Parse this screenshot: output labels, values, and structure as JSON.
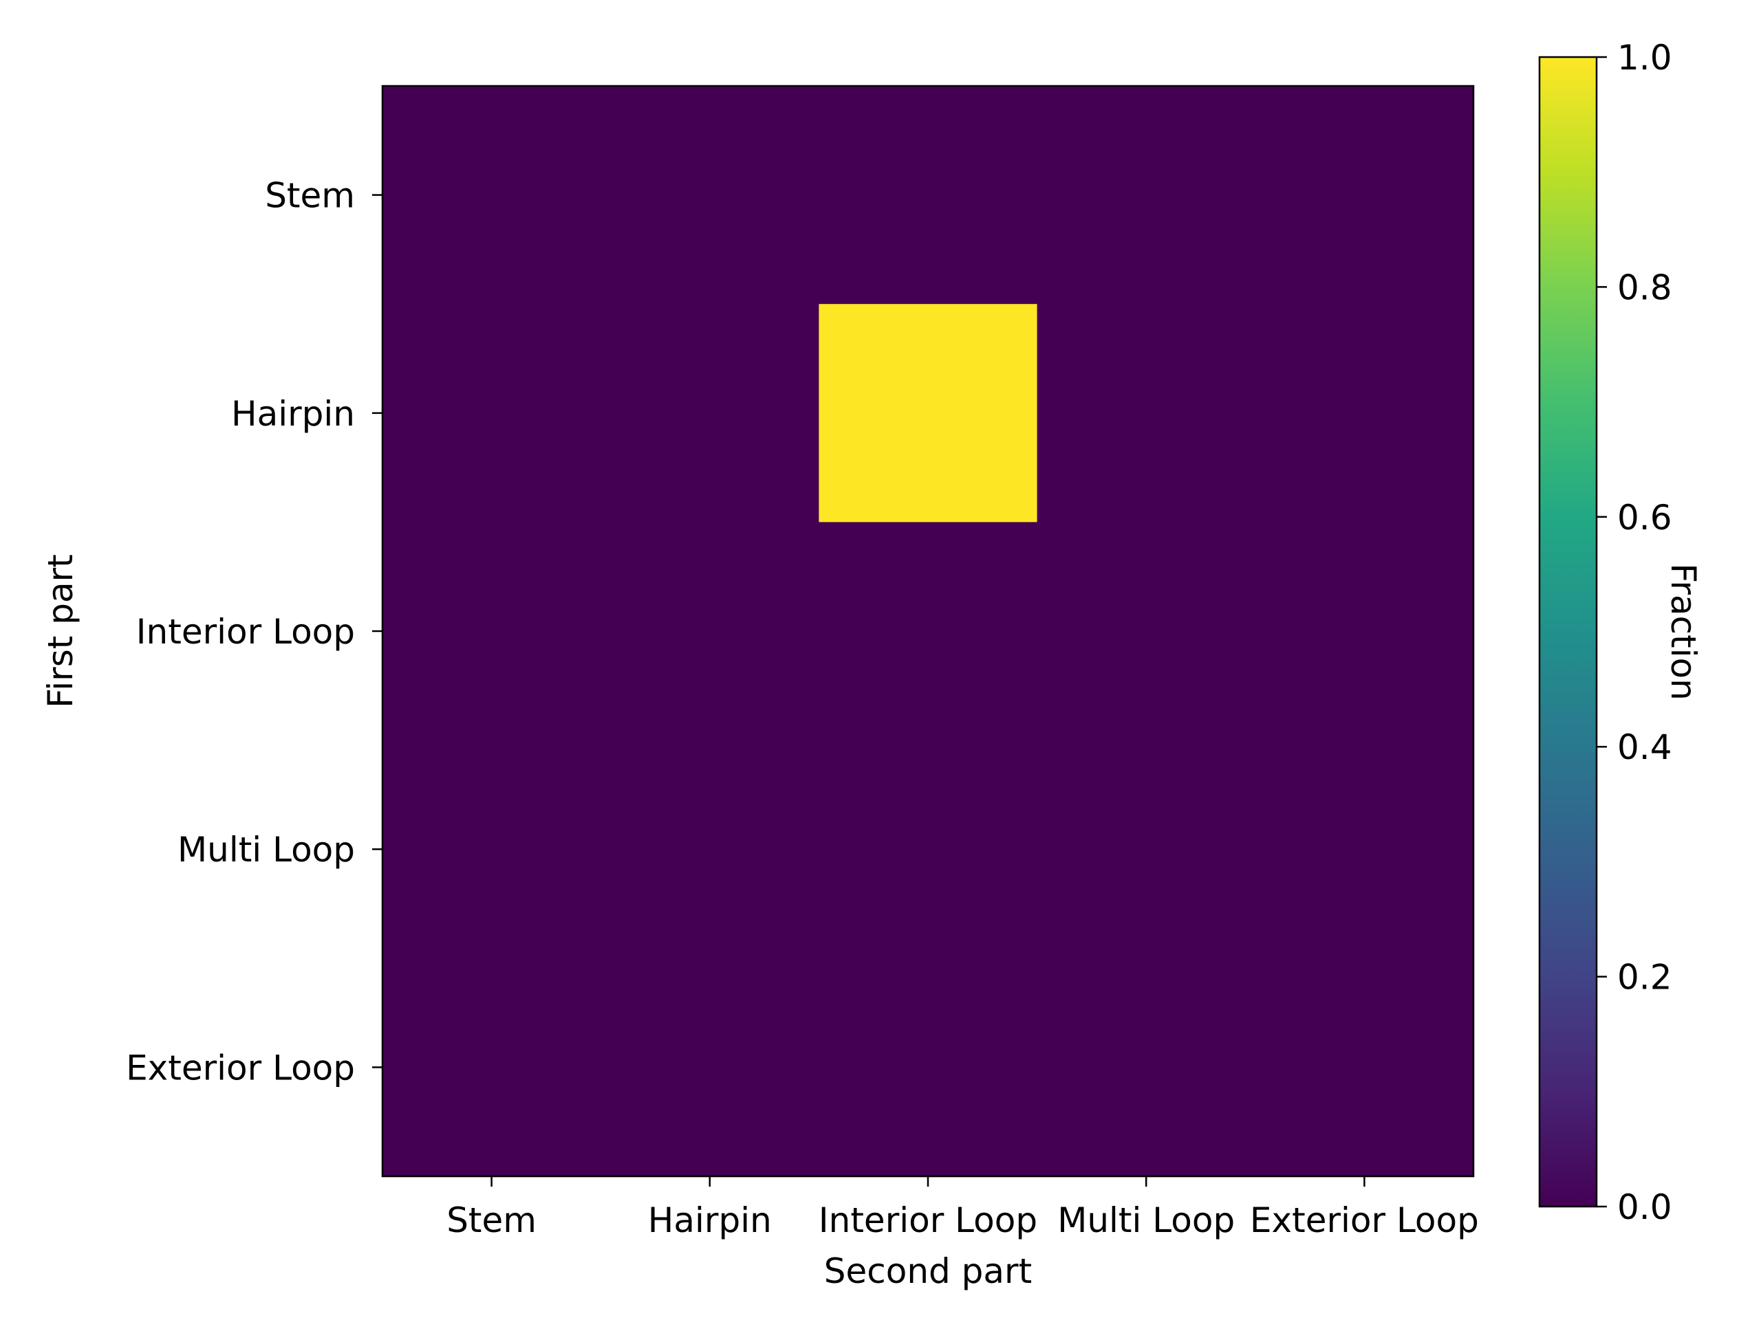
{
  "chart_data": {
    "type": "heatmap",
    "title": "",
    "xlabel": "Second part",
    "ylabel": "First part",
    "x_categories": [
      "Stem",
      "Hairpin",
      "Interior Loop",
      "Multi Loop",
      "Exterior Loop"
    ],
    "y_categories": [
      "Stem",
      "Hairpin",
      "Interior Loop",
      "Multi Loop",
      "Exterior Loop"
    ],
    "values": [
      [
        0,
        0,
        0,
        0,
        0
      ],
      [
        0,
        0,
        1,
        0,
        0
      ],
      [
        0,
        0,
        0,
        0,
        0
      ],
      [
        0,
        0,
        0,
        0,
        0
      ],
      [
        0,
        0,
        0,
        0,
        0
      ]
    ],
    "colormap": "viridis",
    "colorbar": {
      "label": "Fraction",
      "range": [
        0.0,
        1.0
      ],
      "ticks": [
        "0.0",
        "0.2",
        "0.4",
        "0.6",
        "0.8",
        "1.0"
      ]
    },
    "grid": false
  }
}
